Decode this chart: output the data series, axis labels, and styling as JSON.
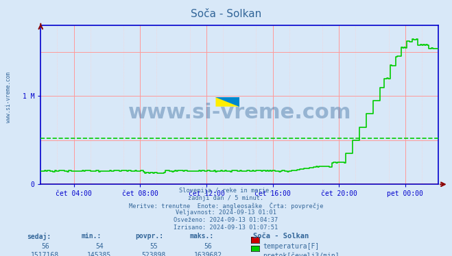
{
  "title": "Soča - Solkan",
  "bg_color": "#d8e8f8",
  "plot_bg_color": "#d8e8f8",
  "axis_color": "#0000cc",
  "grid_color_major": "#ff9999",
  "grid_color_minor": "#ffcccc",
  "text_color": "#336699",
  "xlabel_ticks": [
    "čet 04:00",
    "čet 08:00",
    "čet 12:00",
    "čet 16:00",
    "čet 20:00",
    "pet 00:00"
  ],
  "ylim": [
    0,
    1800000
  ],
  "y1M_value": 1000000,
  "subtitle_lines": [
    "Slovenija / reke in morje.",
    "zadnji dan / 5 minut.",
    "Meritve: trenutne  Enote: angleosaške  Črta: povprečje",
    "Veljavnost: 2024-09-13 01:01",
    "Osveženo: 2024-09-13 01:04:37",
    "Izrisano: 2024-09-13 01:07:51"
  ],
  "watermark": "www.si-vreme.com",
  "watermark_color": "#336699",
  "sidebar_text": "www.si-vreme.com",
  "temp_color": "#cc0000",
  "flow_color": "#00cc00",
  "avg_line_color": "#00cc00",
  "avg_line_value": 523898,
  "table_headers": [
    "sedaj:",
    "min.:",
    "povpr.:",
    "maks.:"
  ],
  "table_temp": [
    56,
    54,
    55,
    56
  ],
  "table_flow": [
    1517168,
    145385,
    523898,
    1639682
  ],
  "station_name": "Soča - Solkan",
  "tick_hours": [
    2,
    6,
    10,
    14,
    18,
    22
  ]
}
